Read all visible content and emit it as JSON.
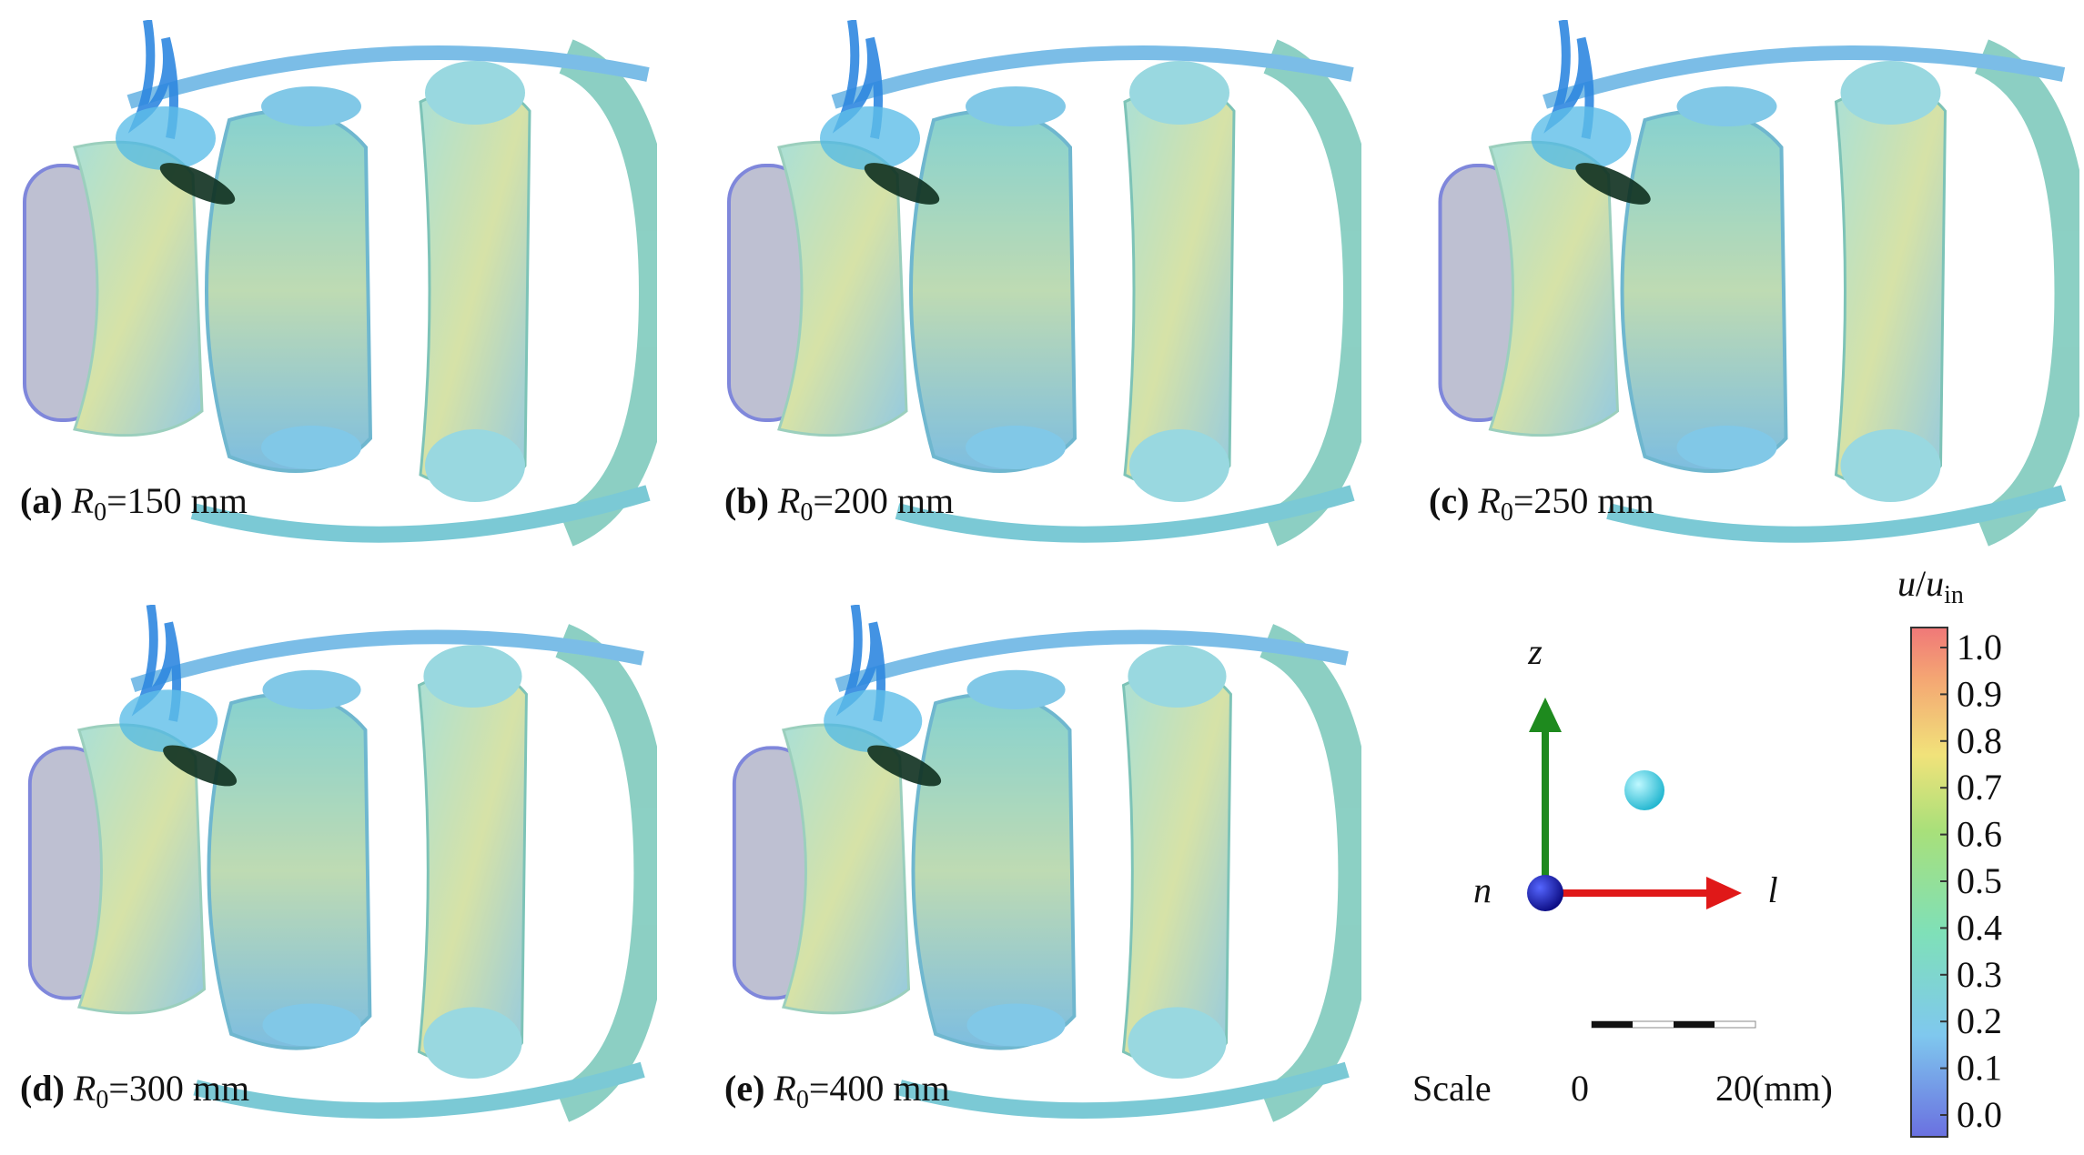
{
  "panels": [
    {
      "tag": "(a)",
      "symbol": "R",
      "subscript": "0",
      "text": "=150 mm"
    },
    {
      "tag": "(b)",
      "symbol": "R",
      "subscript": "0",
      "text": "=200 mm"
    },
    {
      "tag": "(c)",
      "symbol": "R",
      "subscript": "0",
      "text": "=250 mm"
    },
    {
      "tag": "(d)",
      "symbol": "R",
      "subscript": "0",
      "text": "=300 mm"
    },
    {
      "tag": "(e)",
      "symbol": "R",
      "subscript": "0",
      "text": "=400 mm"
    }
  ],
  "axes": {
    "z": "z",
    "n": "n",
    "l": "l"
  },
  "scale": {
    "label": "Scale",
    "start": "0",
    "end": "20(mm)"
  },
  "colorbar": {
    "title": {
      "numerator": "u",
      "denominator": "u",
      "subscript": "in"
    },
    "range": [
      0,
      1
    ],
    "ticks": [
      {
        "value": 0,
        "label": "0.0"
      },
      {
        "value": 0.1,
        "label": "0.1"
      },
      {
        "value": 0.2,
        "label": "0.2"
      },
      {
        "value": 0.3,
        "label": "0.3"
      },
      {
        "value": 0.4,
        "label": "0.4"
      },
      {
        "value": 0.5,
        "label": "0.5"
      },
      {
        "value": 0.6,
        "label": "0.6"
      },
      {
        "value": 0.7,
        "label": "0.7"
      },
      {
        "value": 0.8,
        "label": "0.8"
      },
      {
        "value": 0.9,
        "label": "0.9"
      },
      {
        "value": 1,
        "label": "1.0"
      }
    ]
  }
}
